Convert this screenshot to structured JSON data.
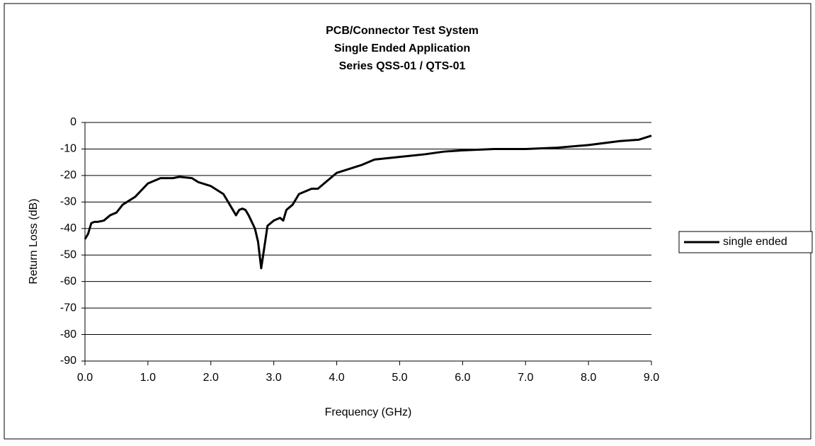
{
  "chart_data": {
    "type": "line",
    "title": [
      "PCB/Connector Test System",
      "Single Ended Application",
      "Series QSS-01 / QTS-01"
    ],
    "x_label": "Frequency (GHz)",
    "y_label": "Return Loss (dB)",
    "xlim": [
      0,
      9
    ],
    "ylim": [
      -90,
      0
    ],
    "xticks": [
      {
        "value": 0,
        "label": "0.0"
      },
      {
        "value": 1,
        "label": "1.0"
      },
      {
        "value": 2,
        "label": "2.0"
      },
      {
        "value": 3,
        "label": "3.0"
      },
      {
        "value": 4,
        "label": "4.0"
      },
      {
        "value": 5,
        "label": "5.0"
      },
      {
        "value": 6,
        "label": "6.0"
      },
      {
        "value": 7,
        "label": "7.0"
      },
      {
        "value": 8,
        "label": "8.0"
      },
      {
        "value": 9,
        "label": "9.0"
      }
    ],
    "yticks": [
      0,
      -10,
      -20,
      -30,
      -40,
      -50,
      -60,
      -70,
      -80,
      -90
    ],
    "grid": true,
    "legend": "right",
    "x": [
      0,
      0.05,
      0.1,
      0.15,
      0.2,
      0.3,
      0.4,
      0.5,
      0.6,
      0.8,
      1.0,
      1.1,
      1.2,
      1.4,
      1.5,
      1.7,
      1.8,
      2.0,
      2.2,
      2.3,
      2.4,
      2.45,
      2.5,
      2.55,
      2.6,
      2.7,
      2.75,
      2.8,
      2.85,
      2.9,
      3.0,
      3.1,
      3.15,
      3.2,
      3.3,
      3.4,
      3.5,
      3.6,
      3.7,
      3.8,
      4.0,
      4.2,
      4.4,
      4.6,
      5.0,
      5.4,
      5.7,
      6.0,
      6.5,
      7.0,
      7.5,
      8.0,
      8.5,
      8.8,
      9.0
    ],
    "series": [
      {
        "name": "single ended",
        "color": "#000000",
        "values": [
          -44,
          -42,
          -38,
          -37.5,
          -37.5,
          -37,
          -35,
          -34,
          -31,
          -28,
          -23,
          -22,
          -21,
          -21,
          -20.5,
          -21,
          -22.5,
          -24,
          -27,
          -31,
          -35,
          -33,
          -32.5,
          -33,
          -35,
          -40,
          -45,
          -55,
          -47,
          -39,
          -37,
          -36,
          -37,
          -33,
          -31,
          -27,
          -26,
          -25,
          -25,
          -23,
          -19,
          -17.5,
          -16,
          -14,
          -13,
          -12,
          -11,
          -10.5,
          -10,
          -10,
          -9.5,
          -8.5,
          -7,
          -6.5,
          -5
        ]
      }
    ]
  }
}
